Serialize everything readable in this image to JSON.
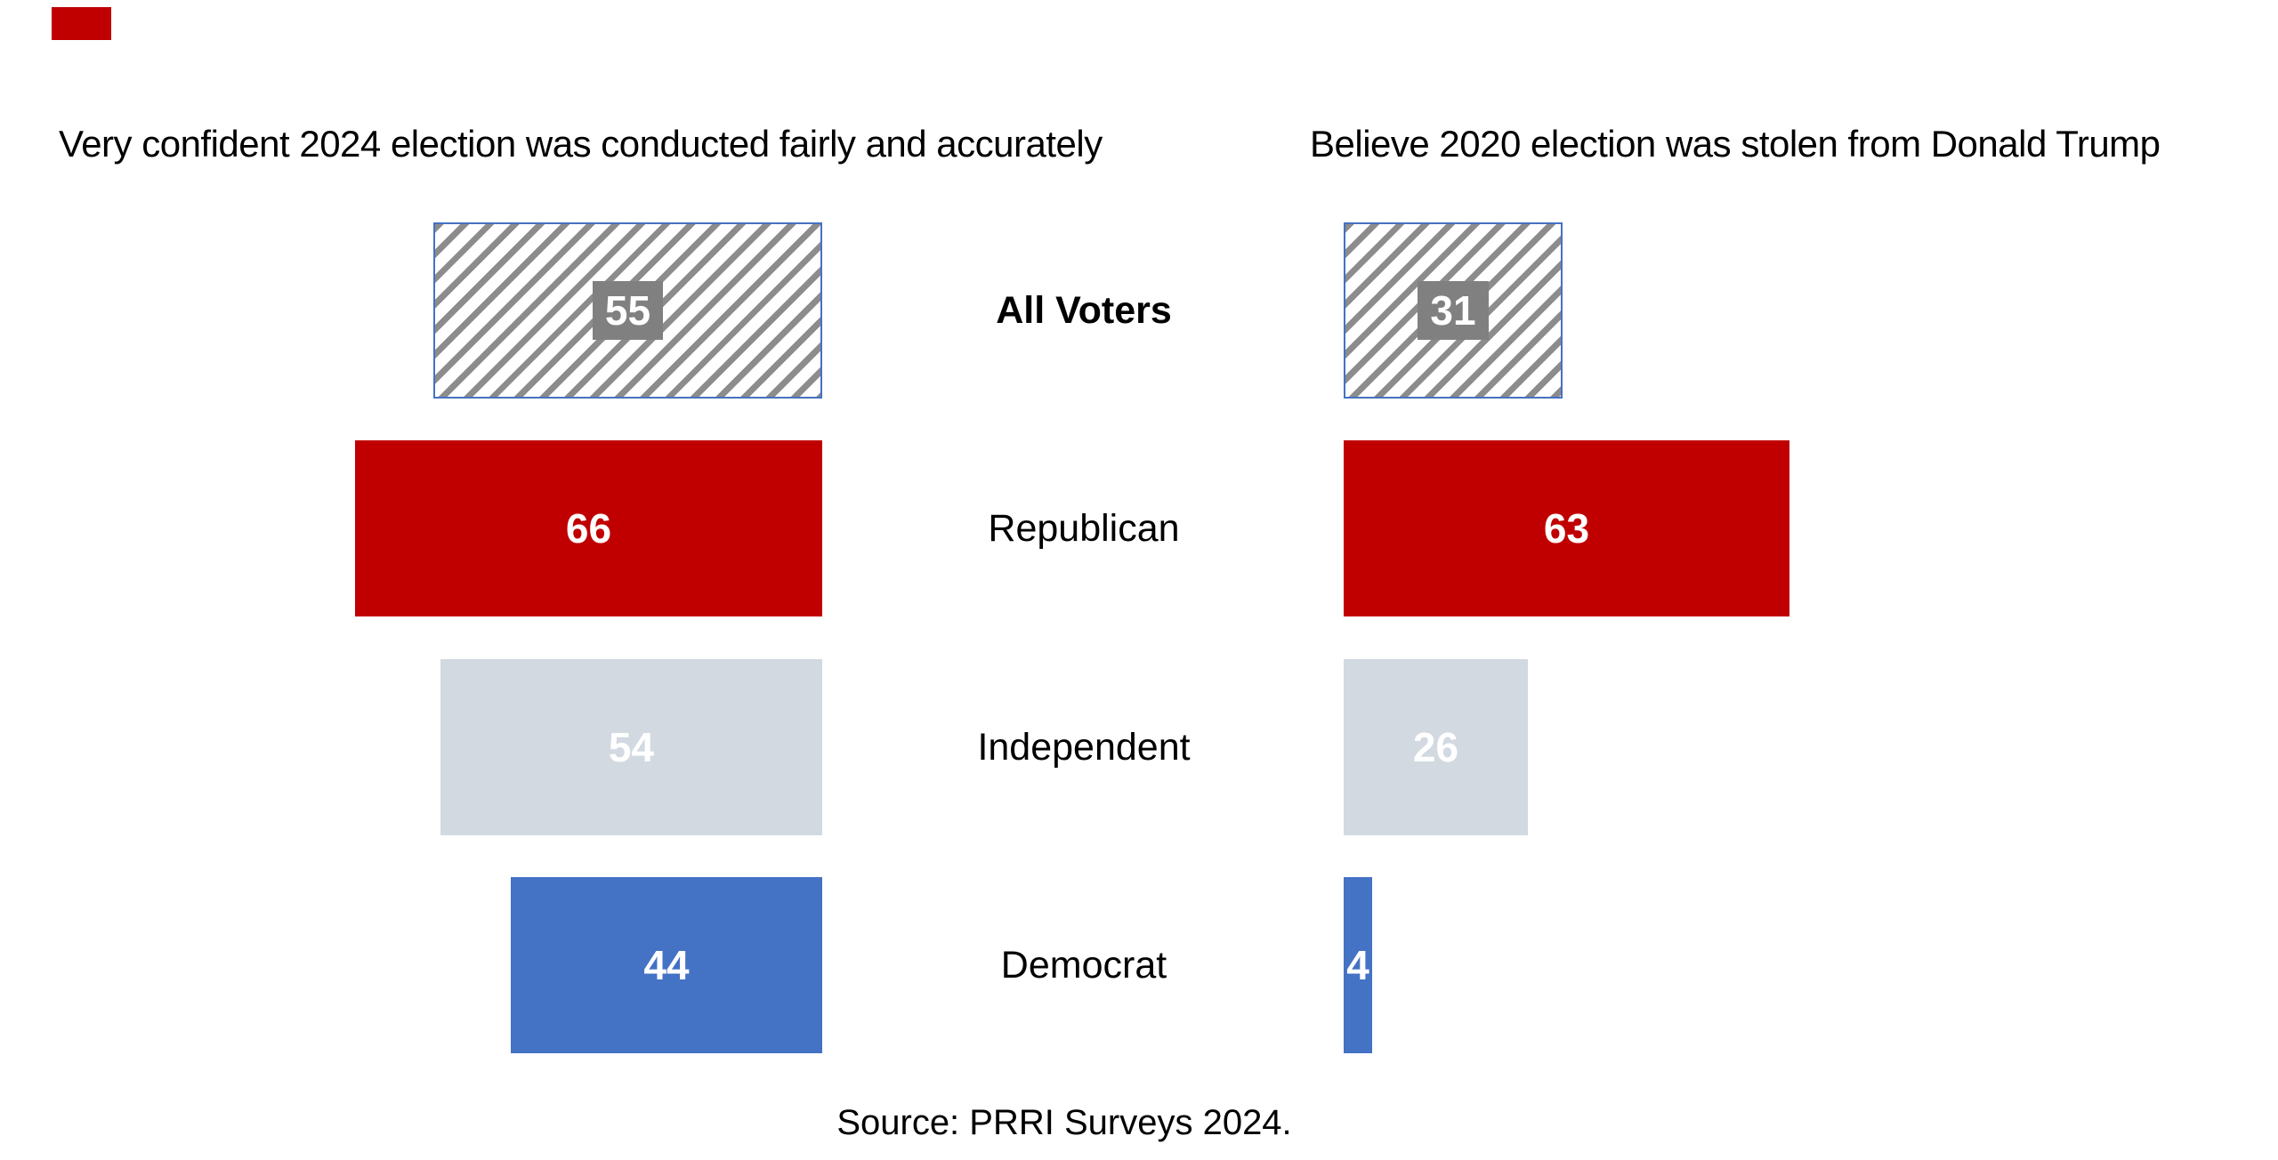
{
  "chart_data": {
    "type": "bar",
    "layout": "two mirrored horizontal bar charts with shared centered category labels, no axes, values printed on bars",
    "categories": [
      "All Voters",
      "Republican",
      "Independent",
      "Democrat"
    ],
    "charts": [
      {
        "title": "Very confident 2024 election was conducted fairly and accurately",
        "side": "left",
        "values": [
          55,
          66,
          54,
          44
        ]
      },
      {
        "title": "Believe 2020 election was stolen from Donald Trump",
        "side": "right",
        "values": [
          31,
          63,
          26,
          4
        ]
      }
    ],
    "value_range": [
      0,
      66
    ],
    "source": "Source: PRRI Surveys 2024.",
    "styles": {
      "bar_fill_by_category": [
        "hatched",
        "#c00000",
        "#d2d9e1",
        "#4472c4"
      ],
      "hatch_foreground": "#8c8c8c",
      "hatch_background": "#ffffff",
      "hatch_border": "#4472c4",
      "value_label_color": "#ffffff",
      "all_voters_value_box_bg": "#808080",
      "text_color": "#000000",
      "corner_mark_color": "#c00000",
      "grid": "off",
      "legend": "none"
    }
  }
}
